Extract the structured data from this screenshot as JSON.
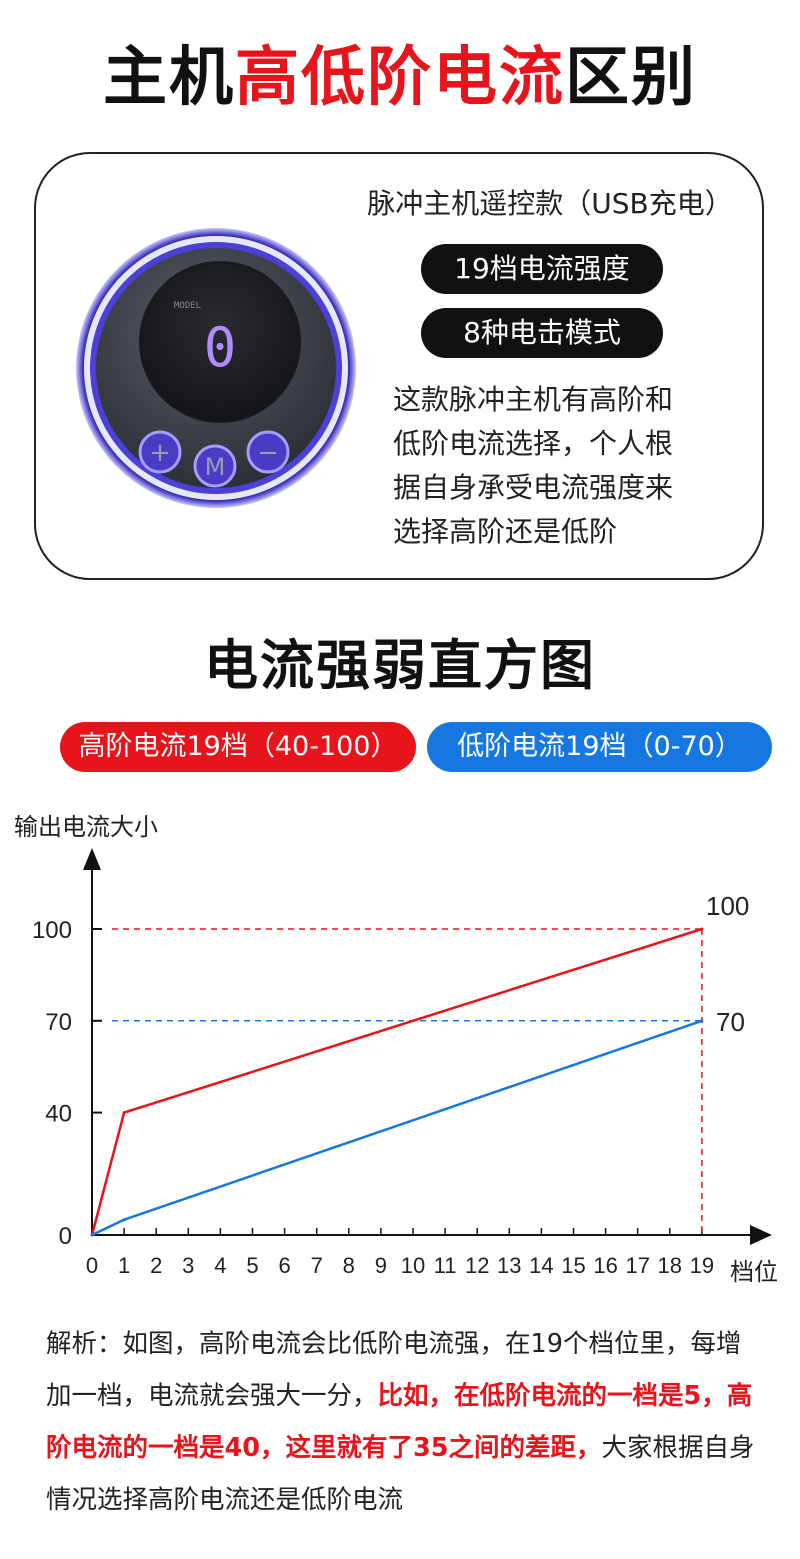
{
  "header": {
    "title_part1": "主机",
    "title_part2": "高低阶电流",
    "title_part3": "区别"
  },
  "product": {
    "name": "脉冲主机遥控款（USB充电）",
    "feature1": "19档电流强度",
    "feature2": "8种电击模式",
    "description": "这款脉冲主机有高阶和\n低阶电流选择，个人根\n据自身承受电流强度来\n选择高阶还是低阶",
    "device_model_label": "MODEL",
    "device_display": "0",
    "button_plus": "+",
    "button_mode": "M",
    "button_minus": "−"
  },
  "section": {
    "title": "电流强弱直方图",
    "legend_high": "高阶电流19档（40-100）",
    "legend_low": "低阶电流19档（0-70）"
  },
  "chart_data": {
    "type": "line",
    "ylabel": "输出电流大小",
    "xlabel": "档位",
    "x": [
      0,
      1,
      2,
      3,
      4,
      5,
      6,
      7,
      8,
      9,
      10,
      11,
      12,
      13,
      14,
      15,
      16,
      17,
      18,
      19
    ],
    "x_ticks": [
      "0",
      "1",
      "2",
      "3",
      "4",
      "5",
      "6",
      "7",
      "8",
      "9",
      "10",
      "11",
      "12",
      "13",
      "14",
      "15",
      "16",
      "17",
      "18",
      "19"
    ],
    "y_ticks": [
      "0",
      "40",
      "70",
      "100"
    ],
    "y_tick_values": [
      0,
      40,
      70,
      100
    ],
    "ylim": [
      0,
      120
    ],
    "xlim": [
      0,
      21
    ],
    "series": [
      {
        "color": "#e8141b",
        "points": [
          [
            0,
            0
          ],
          [
            1,
            40
          ],
          [
            19,
            100
          ]
        ]
      },
      {
        "color": "#1677e0",
        "points": [
          [
            0,
            0
          ],
          [
            1,
            5
          ],
          [
            19,
            70
          ]
        ]
      }
    ],
    "end_labels": [
      "100",
      "70"
    ],
    "reference_lines": [
      {
        "y": 100,
        "color": "#e8141b"
      },
      {
        "y": 70,
        "color": "#1677e0"
      }
    ]
  },
  "analysis": {
    "part1": "解析：如图，高阶电流会比低阶电流强，在19个档位里，每增加一档，电流就会强大一分，",
    "part2": "比如，在低阶电流的一档是5，高阶电流的一档是40，这里就有了35之间的差距，",
    "part3": "大家根据自身情况选择高阶电流还是低阶电流"
  }
}
